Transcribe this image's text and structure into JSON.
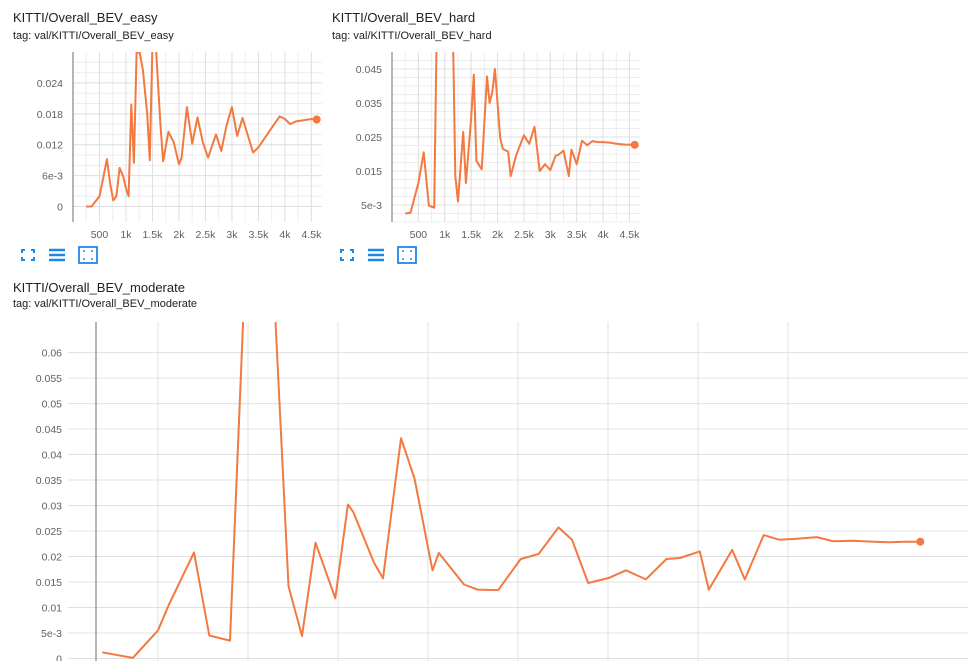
{
  "colors": {
    "line": "#f27940",
    "grid": "#e0e0e0",
    "axis": "#9e9e9e",
    "text": "#616161",
    "icon": "#1e88e5"
  },
  "cards": [
    {
      "title": "KITTI/Overall_BEV_easy",
      "tag": "tag: val/KITTI/Overall_BEV_easy"
    },
    {
      "title": "KITTI/Overall_BEV_hard",
      "tag": "tag: val/KITTI/Overall_BEV_hard"
    },
    {
      "title": "KITTI/Overall_BEV_moderate",
      "tag": "tag: val/KITTI/Overall_BEV_moderate"
    }
  ],
  "toolbar": [
    {
      "icons": [
        "fullscreen-icon",
        "toggle-y-log-icon",
        "fit-domain-icon"
      ]
    },
    {
      "icons": [
        "fullscreen-icon",
        "toggle-y-log-icon",
        "fit-domain-icon"
      ]
    }
  ],
  "chart_data": [
    {
      "type": "line",
      "title": "KITTI/Overall_BEV_easy",
      "x": [
        250,
        350,
        500,
        580,
        640,
        700,
        760,
        820,
        880,
        950,
        1000,
        1050,
        1100,
        1150,
        1200,
        1260,
        1320,
        1400,
        1450,
        1500,
        1560,
        1650,
        1700,
        1800,
        1900,
        2000,
        2050,
        2150,
        2250,
        2350,
        2450,
        2550,
        2700,
        2800,
        2900,
        3000,
        3100,
        3200,
        3400,
        3500,
        3600,
        3800,
        3900,
        4000,
        4100,
        4200,
        4500,
        4600
      ],
      "y": [
        0,
        0,
        0.002,
        0.006,
        0.0092,
        0.0045,
        0.0012,
        0.002,
        0.0075,
        0.0058,
        0.0035,
        0.002,
        0.0198,
        0.0085,
        0.03,
        0.0298,
        0.0265,
        0.018,
        0.009,
        0.032,
        0.032,
        0.016,
        0.0088,
        0.0145,
        0.0125,
        0.0082,
        0.0095,
        0.0193,
        0.0122,
        0.0173,
        0.0125,
        0.0095,
        0.014,
        0.0108,
        0.0158,
        0.0193,
        0.0137,
        0.0172,
        0.0105,
        0.0115,
        0.013,
        0.016,
        0.0175,
        0.017,
        0.016,
        0.0165,
        0.017,
        0.0169
      ],
      "x_ticks": [
        "500",
        "1k",
        "1.5k",
        "2k",
        "2.5k",
        "3k",
        "3.5k",
        "4k",
        "4.5k"
      ],
      "y_ticks": [
        "0",
        "6e-3",
        "0.012",
        "0.018",
        "0.024"
      ]
    },
    {
      "type": "line",
      "title": "KITTI/Overall_BEV_hard",
      "x": [
        250,
        350,
        500,
        600,
        700,
        800,
        850,
        900,
        1000,
        1100,
        1150,
        1200,
        1250,
        1350,
        1400,
        1500,
        1550,
        1600,
        1700,
        1800,
        1850,
        1900,
        1950,
        2050,
        2100,
        2200,
        2250,
        2350,
        2500,
        2600,
        2700,
        2800,
        2900,
        3000,
        3100,
        3150,
        3250,
        3350,
        3400,
        3500,
        3600,
        3700,
        3800,
        3900,
        4000,
        4150,
        4250,
        4400,
        4600
      ],
      "y": [
        0.0025,
        0.0027,
        0.0115,
        0.0205,
        0.0048,
        0.0042,
        0.06,
        0.06,
        0.06,
        0.06,
        0.06,
        0.0136,
        0.006,
        0.0265,
        0.0115,
        0.0303,
        0.0433,
        0.018,
        0.0155,
        0.0428,
        0.035,
        0.0382,
        0.045,
        0.0247,
        0.0215,
        0.0207,
        0.0135,
        0.0195,
        0.0255,
        0.023,
        0.028,
        0.015,
        0.017,
        0.0153,
        0.0195,
        0.0197,
        0.021,
        0.0135,
        0.0213,
        0.017,
        0.0239,
        0.0226,
        0.0238,
        0.0235,
        0.0235,
        0.0233,
        0.023,
        0.0228,
        0.0227
      ],
      "x_ticks": [
        "500",
        "1k",
        "1.5k",
        "2k",
        "2.5k",
        "3k",
        "3.5k",
        "4k",
        "4.5k"
      ],
      "y_ticks": [
        "5e-3",
        "0.015",
        "0.025",
        "0.035",
        "0.045"
      ]
    },
    {
      "type": "line",
      "title": "KITTI/Overall_BEV_moderate",
      "x": [
        0.38,
        0.72,
        1.0,
        1.12,
        1.4,
        1.57,
        1.8,
        1.95,
        2.15,
        2.2,
        2.3,
        2.45,
        2.6,
        2.75,
        2.97,
        3.11,
        3.17,
        3.4,
        3.5,
        3.7,
        3.85,
        4.05,
        4.12,
        4.4,
        4.55,
        4.78,
        5.03,
        5.23,
        5.45,
        5.6,
        5.78,
        6.01,
        6.2,
        6.42,
        6.65,
        6.8,
        7.02,
        7.12,
        7.38,
        7.52,
        7.73,
        7.9,
        8.1,
        8.32,
        8.5,
        8.72,
        8.95,
        9.12,
        9.3,
        9.47
      ],
      "y": [
        0.0012,
        0.0001,
        0.0055,
        0.0105,
        0.0208,
        0.0045,
        0.0035,
        0.068,
        0.068,
        0.068,
        0.068,
        0.0142,
        0.0044,
        0.0227,
        0.0118,
        0.0302,
        0.0287,
        0.0188,
        0.0157,
        0.0432,
        0.0353,
        0.0173,
        0.0207,
        0.0145,
        0.0135,
        0.0134,
        0.0195,
        0.0205,
        0.0257,
        0.0233,
        0.0148,
        0.0158,
        0.0173,
        0.0155,
        0.0195,
        0.0197,
        0.021,
        0.0135,
        0.0213,
        0.0155,
        0.0242,
        0.0233,
        0.0235,
        0.0238,
        0.023,
        0.0231,
        0.0229,
        0.0228,
        0.0229,
        0.0229
      ],
      "x_ticks": [
        "",
        "",
        "",
        "",
        "",
        "",
        ""
      ],
      "y_ticks": [
        "0",
        "5e-3",
        "0.01",
        "0.015",
        "0.02",
        "0.025",
        "0.03",
        "0.035",
        "0.04",
        "0.045",
        "0.05",
        "0.055",
        "0.06"
      ]
    }
  ]
}
